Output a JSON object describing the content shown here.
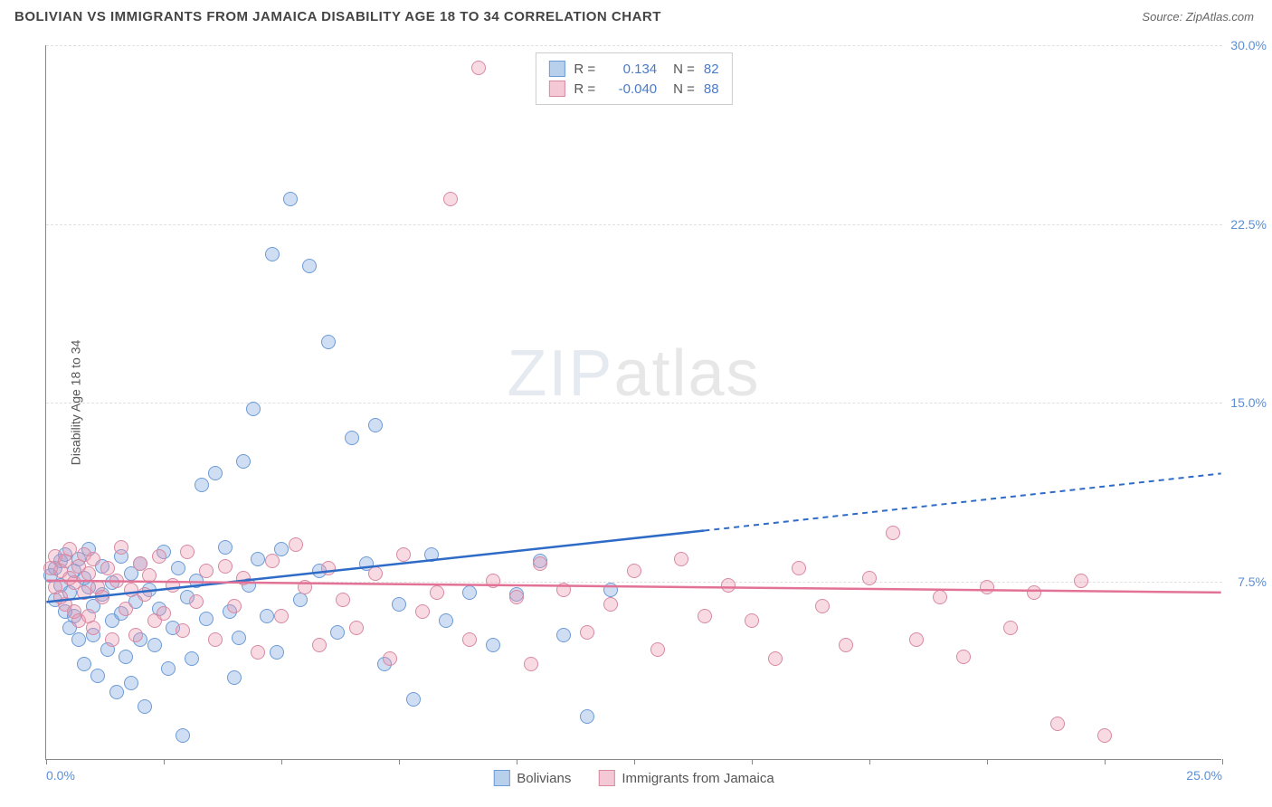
{
  "title": "BOLIVIAN VS IMMIGRANTS FROM JAMAICA DISABILITY AGE 18 TO 34 CORRELATION CHART",
  "source_label": "Source:",
  "source_name": "ZipAtlas.com",
  "ylabel": "Disability Age 18 to 34",
  "watermark_a": "ZIP",
  "watermark_b": "atlas",
  "chart": {
    "xlim": [
      0,
      25
    ],
    "ylim": [
      0,
      30
    ],
    "xticks": [
      0,
      2.5,
      5,
      7.5,
      10,
      12.5,
      15,
      17.5,
      20,
      22.5,
      25
    ],
    "xticklabels_shown": {
      "0": "0.0%",
      "25": "25.0%"
    },
    "yticks": [
      7.5,
      15,
      22.5,
      30
    ],
    "yticklabels": [
      "7.5%",
      "15.0%",
      "22.5%",
      "30.0%"
    ],
    "grid_color": "#e0e0e0",
    "axis_color": "#888888",
    "point_radius": 8,
    "series": [
      {
        "name": "Bolivians",
        "fill": "rgba(120,160,220,0.35)",
        "stroke": "#6d9bd6",
        "swatch_fill": "#b9d0ed",
        "swatch_border": "#6d9bd6",
        "line_color": "#2e6bc6",
        "R": "0.134",
        "N": "82",
        "trend": {
          "x1": 0,
          "y1": 6.6,
          "x2_solid": 14,
          "y2_solid": 9.6,
          "x2": 25,
          "y2": 12.0
        },
        "points": [
          [
            0.1,
            7.7
          ],
          [
            0.2,
            8.0
          ],
          [
            0.2,
            6.7
          ],
          [
            0.3,
            7.3
          ],
          [
            0.3,
            8.3
          ],
          [
            0.4,
            6.2
          ],
          [
            0.4,
            8.6
          ],
          [
            0.5,
            7.0
          ],
          [
            0.5,
            5.5
          ],
          [
            0.6,
            7.9
          ],
          [
            0.6,
            6.0
          ],
          [
            0.7,
            8.4
          ],
          [
            0.7,
            5.0
          ],
          [
            0.8,
            7.6
          ],
          [
            0.8,
            4.0
          ],
          [
            0.9,
            7.2
          ],
          [
            0.9,
            8.8
          ],
          [
            1.0,
            6.4
          ],
          [
            1.0,
            5.2
          ],
          [
            1.1,
            3.5
          ],
          [
            1.2,
            8.1
          ],
          [
            1.2,
            6.9
          ],
          [
            1.3,
            4.6
          ],
          [
            1.4,
            7.4
          ],
          [
            1.4,
            5.8
          ],
          [
            1.5,
            2.8
          ],
          [
            1.6,
            8.5
          ],
          [
            1.6,
            6.1
          ],
          [
            1.7,
            4.3
          ],
          [
            1.8,
            7.8
          ],
          [
            1.8,
            3.2
          ],
          [
            1.9,
            6.6
          ],
          [
            2.0,
            8.2
          ],
          [
            2.0,
            5.0
          ],
          [
            2.1,
            2.2
          ],
          [
            2.2,
            7.1
          ],
          [
            2.3,
            4.8
          ],
          [
            2.4,
            6.3
          ],
          [
            2.5,
            8.7
          ],
          [
            2.6,
            3.8
          ],
          [
            2.7,
            5.5
          ],
          [
            2.8,
            8.0
          ],
          [
            2.9,
            1.0
          ],
          [
            3.0,
            6.8
          ],
          [
            3.1,
            4.2
          ],
          [
            3.2,
            7.5
          ],
          [
            3.3,
            11.5
          ],
          [
            3.4,
            5.9
          ],
          [
            3.6,
            12.0
          ],
          [
            3.8,
            8.9
          ],
          [
            3.9,
            6.2
          ],
          [
            4.0,
            3.4
          ],
          [
            4.1,
            5.1
          ],
          [
            4.2,
            12.5
          ],
          [
            4.3,
            7.3
          ],
          [
            4.4,
            14.7
          ],
          [
            4.5,
            8.4
          ],
          [
            4.7,
            6.0
          ],
          [
            4.8,
            21.2
          ],
          [
            4.9,
            4.5
          ],
          [
            5.0,
            8.8
          ],
          [
            5.2,
            23.5
          ],
          [
            5.4,
            6.7
          ],
          [
            5.6,
            20.7
          ],
          [
            5.8,
            7.9
          ],
          [
            6.0,
            17.5
          ],
          [
            6.2,
            5.3
          ],
          [
            6.5,
            13.5
          ],
          [
            6.8,
            8.2
          ],
          [
            7.0,
            14.0
          ],
          [
            7.2,
            4.0
          ],
          [
            7.5,
            6.5
          ],
          [
            7.8,
            2.5
          ],
          [
            8.2,
            8.6
          ],
          [
            8.5,
            5.8
          ],
          [
            9.0,
            7.0
          ],
          [
            9.5,
            4.8
          ],
          [
            10.0,
            6.9
          ],
          [
            10.5,
            8.3
          ],
          [
            11.0,
            5.2
          ],
          [
            11.5,
            1.8
          ],
          [
            12.0,
            7.1
          ]
        ]
      },
      {
        "name": "Immigrants from Jamaica",
        "fill": "rgba(235,150,175,0.35)",
        "stroke": "#d889a2",
        "swatch_fill": "#f4c8d5",
        "swatch_border": "#d889a2",
        "line_color": "#e27396",
        "R": "-0.040",
        "N": "88",
        "trend": {
          "x1": 0,
          "y1": 7.5,
          "x2_solid": 25,
          "y2_solid": 7.0,
          "x2": 25,
          "y2": 7.0
        },
        "points": [
          [
            0.1,
            8.0
          ],
          [
            0.2,
            7.2
          ],
          [
            0.2,
            8.5
          ],
          [
            0.3,
            6.8
          ],
          [
            0.3,
            7.9
          ],
          [
            0.4,
            8.3
          ],
          [
            0.4,
            6.5
          ],
          [
            0.5,
            7.6
          ],
          [
            0.5,
            8.8
          ],
          [
            0.6,
            6.2
          ],
          [
            0.6,
            7.4
          ],
          [
            0.7,
            8.1
          ],
          [
            0.7,
            5.8
          ],
          [
            0.8,
            7.0
          ],
          [
            0.8,
            8.6
          ],
          [
            0.9,
            6.0
          ],
          [
            0.9,
            7.8
          ],
          [
            1.0,
            8.4
          ],
          [
            1.0,
            5.5
          ],
          [
            1.1,
            7.2
          ],
          [
            1.2,
            6.8
          ],
          [
            1.3,
            8.0
          ],
          [
            1.4,
            5.0
          ],
          [
            1.5,
            7.5
          ],
          [
            1.6,
            8.9
          ],
          [
            1.7,
            6.3
          ],
          [
            1.8,
            7.1
          ],
          [
            1.9,
            5.2
          ],
          [
            2.0,
            8.2
          ],
          [
            2.1,
            6.9
          ],
          [
            2.2,
            7.7
          ],
          [
            2.3,
            5.8
          ],
          [
            2.4,
            8.5
          ],
          [
            2.5,
            6.1
          ],
          [
            2.7,
            7.3
          ],
          [
            2.9,
            5.4
          ],
          [
            3.0,
            8.7
          ],
          [
            3.2,
            6.6
          ],
          [
            3.4,
            7.9
          ],
          [
            3.6,
            5.0
          ],
          [
            3.8,
            8.1
          ],
          [
            4.0,
            6.4
          ],
          [
            4.2,
            7.6
          ],
          [
            4.5,
            4.5
          ],
          [
            4.8,
            8.3
          ],
          [
            5.0,
            6.0
          ],
          [
            5.3,
            9.0
          ],
          [
            5.5,
            7.2
          ],
          [
            5.8,
            4.8
          ],
          [
            6.0,
            8.0
          ],
          [
            6.3,
            6.7
          ],
          [
            6.6,
            5.5
          ],
          [
            7.0,
            7.8
          ],
          [
            7.3,
            4.2
          ],
          [
            7.6,
            8.6
          ],
          [
            8.0,
            6.2
          ],
          [
            8.3,
            7.0
          ],
          [
            8.6,
            23.5
          ],
          [
            9.0,
            5.0
          ],
          [
            9.2,
            29.0
          ],
          [
            9.5,
            7.5
          ],
          [
            10.0,
            6.8
          ],
          [
            10.3,
            4.0
          ],
          [
            10.5,
            8.2
          ],
          [
            11.0,
            7.1
          ],
          [
            11.5,
            5.3
          ],
          [
            12.0,
            6.5
          ],
          [
            12.5,
            7.9
          ],
          [
            13.0,
            4.6
          ],
          [
            13.5,
            8.4
          ],
          [
            14.0,
            6.0
          ],
          [
            14.5,
            7.3
          ],
          [
            15.0,
            5.8
          ],
          [
            15.5,
            4.2
          ],
          [
            16.0,
            8.0
          ],
          [
            16.5,
            6.4
          ],
          [
            17.0,
            4.8
          ],
          [
            17.5,
            7.6
          ],
          [
            18.0,
            9.5
          ],
          [
            18.5,
            5.0
          ],
          [
            19.0,
            6.8
          ],
          [
            19.5,
            4.3
          ],
          [
            20.0,
            7.2
          ],
          [
            20.5,
            5.5
          ],
          [
            21.0,
            7.0
          ],
          [
            21.5,
            1.5
          ],
          [
            22.0,
            7.5
          ],
          [
            22.5,
            1.0
          ]
        ]
      }
    ]
  },
  "legend_bottom": [
    {
      "label": "Bolivians"
    },
    {
      "label": "Immigrants from Jamaica"
    }
  ]
}
